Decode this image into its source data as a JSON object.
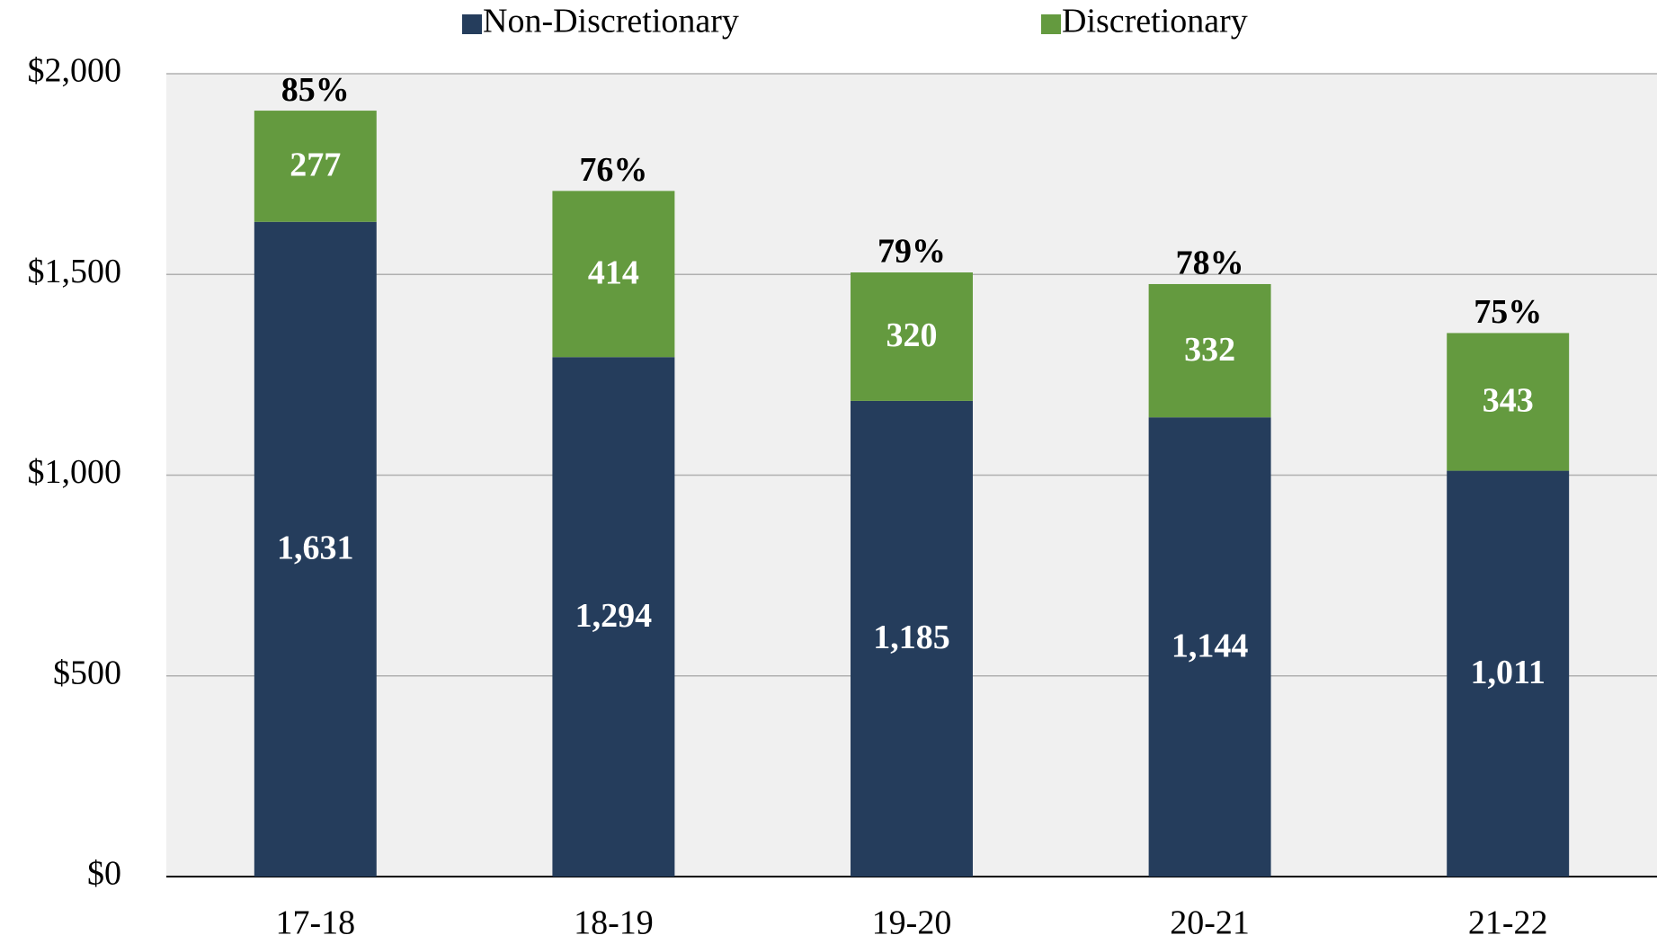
{
  "chart_data": {
    "type": "stacked_bar",
    "categories": [
      "17-18",
      "18-19",
      "19-20",
      "20-21",
      "21-22"
    ],
    "series": [
      {
        "name": "Non-Discretionary",
        "color": "#253d5c",
        "values": [
          1631,
          1294,
          1185,
          1144,
          1011
        ],
        "value_labels": [
          "1,631",
          "1,294",
          "1,185",
          "1,144",
          "1,011"
        ]
      },
      {
        "name": "Discretionary",
        "color": "#649a3f",
        "values": [
          277,
          414,
          320,
          332,
          343
        ]
      }
    ],
    "top_labels": [
      "85%",
      "76%",
      "79%",
      "78%",
      "75%"
    ],
    "ylim": [
      0,
      2000
    ],
    "yticks": [
      {
        "value": 0,
        "label": "$0"
      },
      {
        "value": 500,
        "label": "$500"
      },
      {
        "value": 1000,
        "label": "$1,000"
      },
      {
        "value": 1500,
        "label": "$1,500"
      },
      {
        "value": 2000,
        "label": "$2,000"
      }
    ],
    "grid": true,
    "legend": "top"
  }
}
